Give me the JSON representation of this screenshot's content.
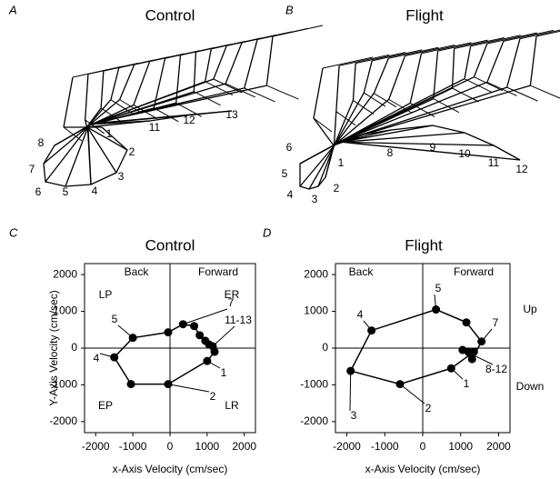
{
  "panels": [
    {
      "letter": "A",
      "title": "Control",
      "labels": [
        "1",
        "2",
        "3",
        "4",
        "5",
        "6",
        "7",
        "8",
        "11",
        "12",
        "13"
      ]
    },
    {
      "letter": "B",
      "title": "Flight",
      "labels": [
        "1",
        "2",
        "3",
        "4",
        "5",
        "6",
        "8",
        "9",
        "10",
        "11",
        "12"
      ]
    }
  ],
  "chart_data": [
    {
      "type": "line",
      "letter": "C",
      "title": "Control",
      "xlabel": "x-Axis Velocity (cm/sec)",
      "ylabel": "Y-Axis Velocity (cm/sec)",
      "x": [
        1000,
        -50,
        -1050,
        -1500,
        -1000,
        -50,
        350,
        650,
        800,
        950,
        1050,
        1150,
        1200
      ],
      "values": [
        -350,
        -980,
        -980,
        -250,
        280,
        430,
        650,
        600,
        350,
        200,
        100,
        50,
        -100
      ],
      "color": "#000000",
      "xlim": [
        -2300,
        2300
      ],
      "ylim": [
        -2300,
        2300
      ],
      "xticks": [
        -2000,
        -1000,
        0,
        1000,
        2000
      ],
      "yticks": [
        -2000,
        -1000,
        0,
        1000,
        2000
      ],
      "annotations": [
        "1",
        "2",
        "4",
        "5",
        "7",
        "11-13"
      ],
      "region_labels": [
        "Back",
        "Forward",
        "LP",
        "ER",
        "EP",
        "LR"
      ]
    },
    {
      "type": "line",
      "letter": "D",
      "title": "Flight",
      "xlabel": "x-Axis Velocity (cm/sec)",
      "x": [
        750,
        -600,
        -1900,
        -1350,
        350,
        1150,
        1550,
        1300,
        1200,
        1050,
        1250,
        1350
      ],
      "values": [
        -550,
        -980,
        -620,
        480,
        1050,
        700,
        180,
        -300,
        -100,
        -50,
        -150,
        -100
      ],
      "color": "#000000",
      "xlim": [
        -2300,
        2300
      ],
      "ylim": [
        -2300,
        2300
      ],
      "xticks": [
        -2000,
        -1000,
        0,
        1000,
        2000
      ],
      "yticks": [
        -2000,
        -1000,
        0,
        1000,
        2000
      ],
      "annotations": [
        "1",
        "2",
        "3",
        "4",
        "5",
        "7",
        "8-12"
      ],
      "region_labels": [
        "Back",
        "Forward",
        "Up",
        "Down"
      ]
    }
  ]
}
